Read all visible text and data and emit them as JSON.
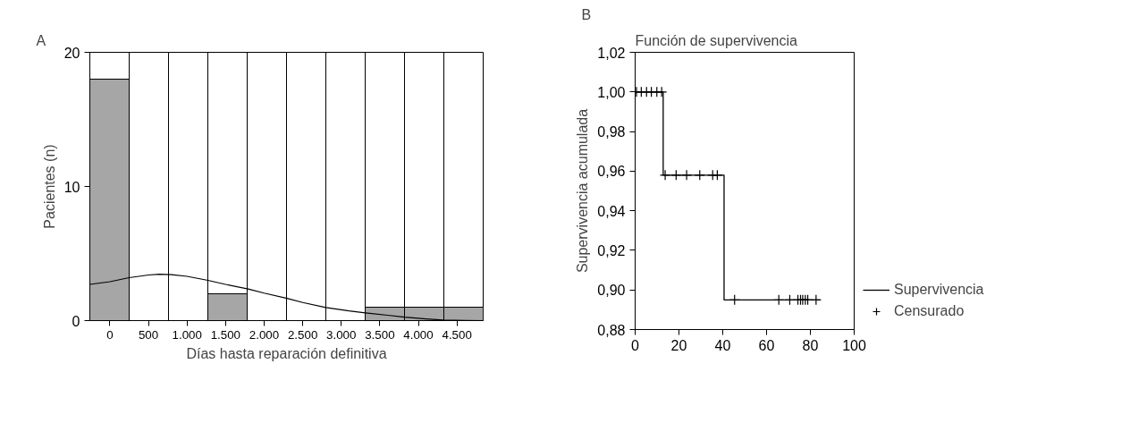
{
  "chart_data": [
    {
      "type": "histogram",
      "annotations": [
        "A"
      ],
      "xlabel": "Días hasta reparación definitiva",
      "ylabel": "Pacientes (n)",
      "bins": [
        -260,
        250,
        760,
        1270,
        1780,
        2290,
        2800,
        3310,
        3820,
        4330,
        4840
      ],
      "values": [
        18,
        0,
        0,
        2,
        0,
        0,
        0,
        1,
        1,
        1
      ],
      "color": "#a6a6a6",
      "series": [
        {
          "type": "line",
          "color": "#000000",
          "x": [
            -260,
            0,
            250,
            500,
            640,
            800,
            1000,
            1272,
            1500,
            1792,
            2000,
            2296,
            2500,
            2800,
            3100,
            3312,
            3600,
            3820,
            4100,
            4320,
            4600,
            4840
          ],
          "values": [
            2.7,
            2.9,
            3.2,
            3.4,
            3.46,
            3.42,
            3.3,
            3.0,
            2.7,
            2.36,
            2.05,
            1.66,
            1.35,
            0.97,
            0.72,
            0.58,
            0.4,
            0.26,
            0.13,
            0.04,
            0.01,
            0.0
          ]
        }
      ],
      "xlim": [
        -260,
        4840
      ],
      "ylim": [
        0,
        20
      ],
      "xticks": [
        0,
        {
          "value": 500,
          "label": "500"
        },
        {
          "value": 1000,
          "label": "1.000"
        },
        {
          "value": 1500,
          "label": "1.500"
        },
        {
          "value": 2000,
          "label": "2.000"
        },
        {
          "value": 2500,
          "label": "2.500"
        },
        {
          "value": 3000,
          "label": "3.000"
        },
        {
          "value": 3500,
          "label": "3.500"
        },
        {
          "value": 4000,
          "label": "4.000"
        },
        {
          "value": 4500,
          "label": "4.500"
        }
      ],
      "yticks": [
        0,
        10,
        20
      ],
      "grid": "x"
    },
    {
      "type": "step",
      "title": "Función de supervivencia",
      "annotations": [
        "B"
      ],
      "ylabel": "Supervivencia acumulada",
      "series": [
        {
          "name": "Supervivencia",
          "type": "step",
          "color": "#000000",
          "x": [
            0,
            12.8,
            40.6,
            84.5
          ],
          "values": [
            1.0,
            0.958,
            0.895,
            0.895
          ]
        },
        {
          "name": "Censurado",
          "type": "scatter",
          "marker": "cross",
          "color": "#000000",
          "x": [
            0.6,
            2.8,
            5.2,
            7.4,
            9.9,
            12.1,
            13.7,
            18.7,
            23.5,
            29.5,
            35.4,
            37.5,
            45.4,
            65.6,
            70.6,
            74.3,
            75.5,
            76.5,
            77.7,
            78.8,
            82.6
          ],
          "values": [
            1.0,
            1.0,
            1.0,
            1.0,
            1.0,
            1.0,
            0.958,
            0.958,
            0.958,
            0.958,
            0.958,
            0.958,
            0.895,
            0.895,
            0.895,
            0.895,
            0.895,
            0.895,
            0.895,
            0.895,
            0.895
          ]
        }
      ],
      "xlim": [
        0,
        100
      ],
      "ylim": [
        0.88,
        1.02
      ],
      "xticks": [
        0,
        20,
        40,
        60,
        80,
        100
      ],
      "yticks": [
        {
          "value": 0.88,
          "label": "0,88"
        },
        {
          "value": 0.9,
          "label": "0,90"
        },
        {
          "value": 0.92,
          "label": "0,92"
        },
        {
          "value": 0.94,
          "label": "0,94"
        },
        {
          "value": 0.96,
          "label": "0,96"
        },
        {
          "value": 0.98,
          "label": "0,98"
        },
        {
          "value": 1.0,
          "label": "1,00"
        },
        {
          "value": 1.02,
          "label": "1,02"
        }
      ],
      "legend": "right"
    }
  ]
}
